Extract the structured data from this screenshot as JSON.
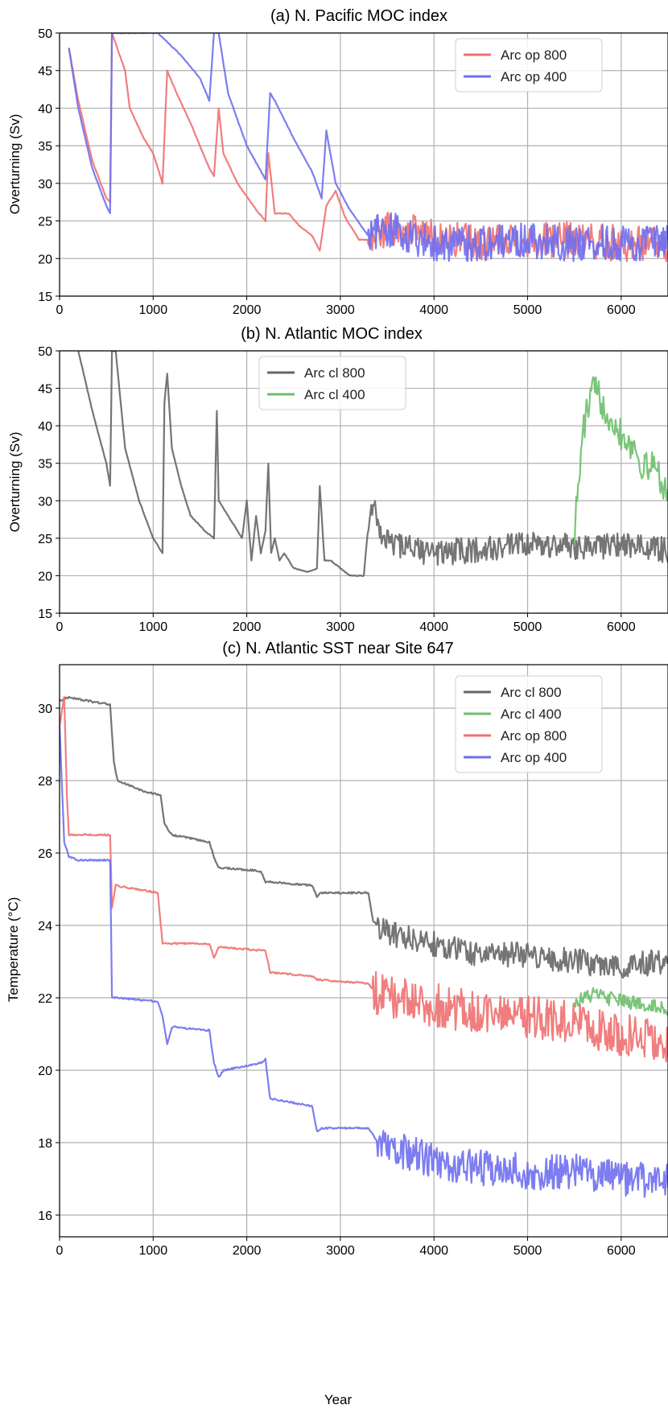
{
  "colors": {
    "red": "#f07070",
    "blue": "#6f6ff0",
    "purple": "#7a3fb8",
    "gray": "#666666",
    "green": "#6cbf6c",
    "grid": "#b0b0b0"
  },
  "chart_data": [
    {
      "type": "line",
      "title": "(a) N. Pacific MOC index",
      "xlabel": "",
      "ylabel": "Overturning (Sv)",
      "xlim": [
        0,
        6500
      ],
      "ylim": [
        15,
        50
      ],
      "xticks": [
        0,
        1000,
        2000,
        3000,
        4000,
        5000,
        6000
      ],
      "yticks": [
        15,
        20,
        25,
        30,
        35,
        40,
        45,
        50
      ],
      "grid": true,
      "legend": "top-right",
      "series": [
        {
          "name": "Arc op 800",
          "color": "#f07070",
          "noise_after": [
            3300,
            2.4
          ],
          "x": [
            100,
            200,
            350,
            500,
            540,
            560,
            700,
            750,
            900,
            1000,
            1100,
            1150,
            1250,
            1400,
            1600,
            1650,
            1700,
            1750,
            1900,
            2100,
            2200,
            2230,
            2300,
            2450,
            2550,
            2700,
            2780,
            2850,
            2950,
            3050,
            3200,
            3300,
            3500,
            4000,
            4500,
            5000,
            5500,
            6000,
            6500
          ],
          "y": [
            48,
            41,
            33,
            28,
            27.5,
            50,
            45,
            40,
            36,
            34,
            30,
            45,
            42,
            38,
            32,
            31,
            40,
            34,
            30,
            26.5,
            25,
            34,
            26,
            26,
            24.5,
            23,
            21,
            27,
            29,
            25.5,
            22.5,
            22.5,
            24,
            23,
            22,
            22.5,
            22.5,
            22,
            22
          ]
        },
        {
          "name": "Arc op 400",
          "color": "#6f6ff0",
          "noise_after": [
            3300,
            2.4
          ],
          "x": [
            100,
            200,
            350,
            500,
            540,
            560,
            900,
            1050,
            1300,
            1500,
            1600,
            1650,
            1700,
            1800,
            2000,
            2200,
            2250,
            2300,
            2500,
            2700,
            2800,
            2850,
            2950,
            3100,
            3300,
            3500,
            4000,
            4500,
            5000,
            5500,
            6000,
            6500
          ],
          "y": [
            48,
            40,
            32,
            27,
            26,
            50,
            50,
            50,
            47,
            44,
            41,
            50,
            50,
            42,
            35,
            30.5,
            42,
            41,
            36,
            31.5,
            28,
            37,
            30,
            26.5,
            23,
            24,
            22,
            22,
            22.5,
            22,
            22,
            22
          ]
        }
      ]
    },
    {
      "type": "line",
      "title": "(b) N. Atlantic MOC index",
      "xlabel": "",
      "ylabel": "Overturning (Sv)",
      "xlim": [
        0,
        6500
      ],
      "ylim": [
        15,
        50
      ],
      "xticks": [
        0,
        1000,
        2000,
        3000,
        4000,
        5000,
        6000
      ],
      "yticks": [
        15,
        20,
        25,
        30,
        35,
        40,
        45,
        50
      ],
      "grid": true,
      "legend": "top-center",
      "series": [
        {
          "name": "Arc cl 800",
          "color": "#666666",
          "noise_after": [
            3300,
            1.8
          ],
          "x": [
            200,
            350,
            500,
            540,
            560,
            600,
            700,
            850,
            1000,
            1100,
            1120,
            1150,
            1200,
            1300,
            1400,
            1550,
            1650,
            1680,
            1700,
            1750,
            1850,
            1950,
            2000,
            2050,
            2100,
            2150,
            2200,
            2230,
            2260,
            2300,
            2350,
            2400,
            2500,
            2650,
            2750,
            2780,
            2830,
            2900,
            3000,
            3100,
            3250,
            3300,
            3350,
            3450,
            3600,
            4000,
            4500,
            5000,
            5500,
            6000,
            6500
          ],
          "y": [
            50,
            42,
            35,
            32,
            50,
            50,
            37,
            30,
            25,
            23,
            43,
            47,
            37,
            32,
            28,
            26,
            25,
            42,
            30,
            29,
            27,
            25,
            30,
            22,
            28,
            23,
            26,
            35,
            23,
            25,
            22,
            23,
            21,
            20.5,
            21,
            32,
            22,
            22,
            21,
            20,
            20,
            27,
            29,
            25,
            24,
            23,
            23.5,
            24,
            24,
            24,
            23.5
          ]
        },
        {
          "name": "Arc cl 400",
          "color": "#6cbf6c",
          "noise_after": [
            5500,
            2.2
          ],
          "x": [
            5500,
            5600,
            5700,
            5850,
            6000,
            6150,
            6250,
            6350,
            6500
          ],
          "y": [
            26,
            40,
            45,
            42,
            39,
            37,
            34,
            35,
            31
          ]
        }
      ]
    },
    {
      "type": "line",
      "title": "(c) N. Atlantic SST near Site 647",
      "xlabel": "Year",
      "ylabel": "Temperature (°C)",
      "xlim": [
        0,
        6500
      ],
      "ylim": [
        15.4,
        31.2
      ],
      "xticks": [
        0,
        1000,
        2000,
        3000,
        4000,
        5000,
        6000
      ],
      "yticks": [
        16,
        18,
        20,
        22,
        24,
        26,
        28,
        30
      ],
      "grid": true,
      "legend": "top-right",
      "series": [
        {
          "name": "Arc cl 800",
          "color": "#666666",
          "noise_after": [
            3400,
            0.35
          ],
          "x": [
            0,
            100,
            300,
            540,
            580,
            620,
            900,
            1080,
            1120,
            1200,
            1600,
            1660,
            1700,
            2150,
            2200,
            2250,
            2700,
            2750,
            2800,
            3300,
            3350,
            3400,
            3500,
            4000,
            4500,
            5000,
            5500,
            6000,
            6500
          ],
          "y": [
            30.2,
            30.3,
            30.2,
            30.1,
            28.5,
            28,
            27.7,
            27.6,
            26.8,
            26.5,
            26.3,
            25.8,
            25.6,
            25.5,
            25.2,
            25.2,
            25.1,
            24.8,
            24.9,
            24.9,
            24.1,
            24,
            23.8,
            23.5,
            23.2,
            23.2,
            23,
            22.9,
            23
          ]
        },
        {
          "name": "Arc cl 400",
          "color": "#6cbf6c",
          "noise_after": [
            5500,
            0.2
          ],
          "x": [
            5500,
            5700,
            6000,
            6300,
            6500
          ],
          "y": [
            21.9,
            22.1,
            21.9,
            21.8,
            21.7
          ]
        },
        {
          "name": "Arc op 800",
          "color": "#f07070",
          "noise_after": [
            3350,
            0.6
          ],
          "x": [
            0,
            50,
            80,
            100,
            200,
            540,
            560,
            600,
            1050,
            1100,
            1150,
            1600,
            1650,
            1700,
            2200,
            2250,
            2700,
            2750,
            3300,
            3350,
            3500,
            4000,
            4500,
            5000,
            5500,
            6000,
            6500
          ],
          "y": [
            29.5,
            30.3,
            27.5,
            26.5,
            26.5,
            26.5,
            24.5,
            25.1,
            24.9,
            23.5,
            23.5,
            23.5,
            23.1,
            23.4,
            23.3,
            22.7,
            22.6,
            22.5,
            22.4,
            22.2,
            22,
            21.8,
            21.6,
            21.5,
            21.3,
            21,
            20.8
          ]
        },
        {
          "name": "Arc op 400",
          "color": "#6f6ff0",
          "noise_after": [
            3400,
            0.5
          ],
          "x": [
            0,
            50,
            100,
            200,
            540,
            560,
            600,
            1050,
            1100,
            1150,
            1200,
            1600,
            1650,
            1700,
            1750,
            2150,
            2200,
            2250,
            2300,
            2700,
            2750,
            2800,
            3300,
            3400,
            3600,
            4000,
            4500,
            5000,
            5500,
            6000,
            6500
          ],
          "y": [
            29.5,
            26.3,
            25.9,
            25.8,
            25.8,
            22,
            22,
            21.9,
            21.5,
            20.7,
            21.2,
            21.1,
            20.2,
            19.8,
            20,
            20.2,
            20.3,
            19.2,
            19.2,
            19,
            18.3,
            18.4,
            18.4,
            18,
            17.8,
            17.5,
            17.3,
            17.2,
            17.2,
            17,
            16.9
          ]
        }
      ]
    }
  ]
}
